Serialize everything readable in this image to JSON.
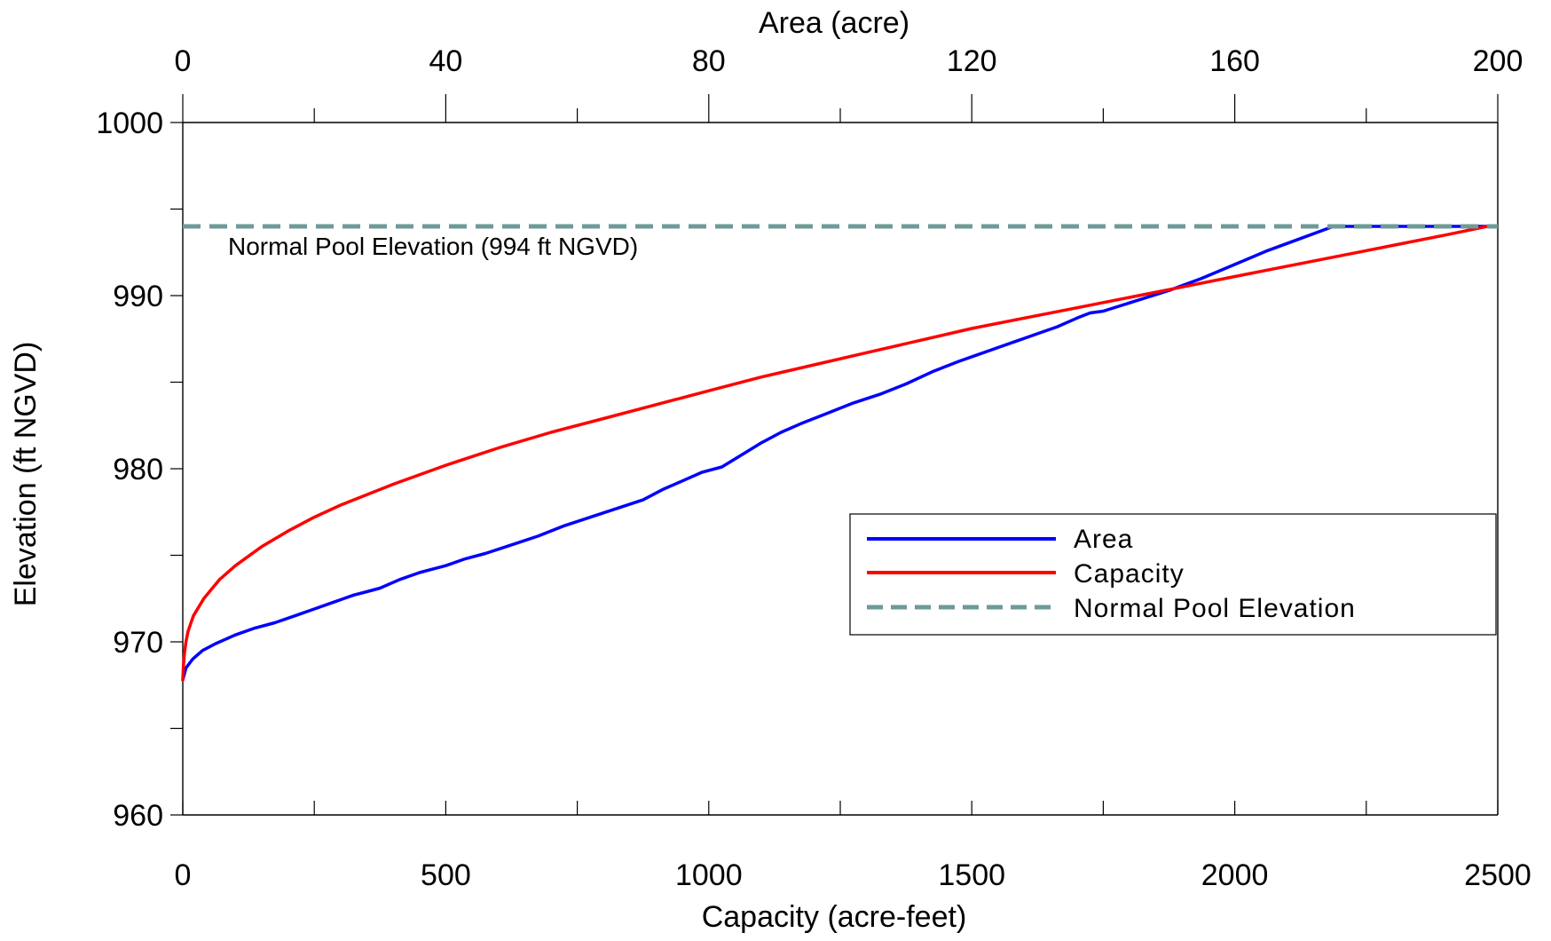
{
  "chart_data": {
    "type": "line",
    "title": "",
    "xlabel": "Capacity (acre-feet)",
    "x2label": "Area (acre)",
    "ylabel": "Elevation (ft NGVD)",
    "xlim": [
      0,
      2500
    ],
    "x2lim": [
      0,
      200
    ],
    "ylim": [
      960,
      1000
    ],
    "x_ticks": [
      "0",
      "500",
      "1000",
      "1500",
      "2000",
      "2500"
    ],
    "x2_ticks": [
      "0",
      "40",
      "80",
      "120",
      "160",
      "200"
    ],
    "y_ticks": [
      "960",
      "970",
      "980",
      "990",
      "1000"
    ],
    "grid": false,
    "legend_position": "right-middle",
    "legend": [
      "Area",
      "Capacity",
      "Normal Pool Elevation"
    ],
    "annotation": "Normal Pool Elevation (994 ft NGVD)",
    "normal_pool_elevation": 994,
    "series": [
      {
        "name": "Area",
        "axis": "top",
        "color": "#0000ff",
        "style": "solid",
        "x": [
          0,
          0.5,
          1.5,
          3,
          5,
          8,
          11,
          14,
          17,
          20,
          23,
          26,
          28,
          30,
          33,
          36,
          38,
          40,
          43,
          46,
          50,
          54,
          58,
          62,
          66,
          70,
          73,
          76,
          79,
          82,
          85,
          88,
          91,
          94,
          98,
          102,
          106,
          110,
          114,
          118,
          121,
          124,
          127,
          130,
          133,
          136,
          138,
          140,
          145,
          150,
          155,
          160,
          165,
          170,
          175,
          180,
          185,
          190,
          195,
          199
        ],
        "y": [
          967.8,
          968.5,
          969.0,
          969.5,
          969.9,
          970.4,
          970.8,
          971.1,
          971.5,
          971.9,
          972.3,
          972.7,
          972.9,
          973.1,
          973.6,
          974.0,
          974.2,
          974.4,
          974.8,
          975.1,
          975.6,
          976.1,
          976.7,
          977.2,
          977.7,
          978.2,
          978.8,
          979.3,
          979.8,
          980.1,
          980.8,
          981.5,
          982.1,
          982.6,
          983.2,
          983.8,
          984.3,
          984.9,
          985.6,
          986.2,
          986.6,
          987.0,
          987.4,
          987.8,
          988.2,
          988.7,
          989.0,
          989.1,
          989.7,
          990.3,
          991.0,
          991.8,
          992.6,
          993.3,
          994.0,
          994.0,
          994.0,
          994.0,
          994.0,
          994.0
        ]
      },
      {
        "name": "Capacity",
        "axis": "bottom",
        "color": "#ff0000",
        "style": "solid",
        "x": [
          0,
          1,
          3,
          6,
          10,
          20,
          40,
          70,
          100,
          150,
          200,
          250,
          300,
          400,
          500,
          600,
          700,
          800,
          900,
          1000,
          1100,
          1200,
          1300,
          1400,
          1500,
          1600,
          1700,
          1800,
          1900,
          2000,
          2100,
          2200,
          2300,
          2400,
          2480
        ],
        "y": [
          967.8,
          968.5,
          969.3,
          970.0,
          970.6,
          971.5,
          972.5,
          973.6,
          974.4,
          975.5,
          976.4,
          977.2,
          977.9,
          979.1,
          980.2,
          981.2,
          982.1,
          982.9,
          983.7,
          984.5,
          985.3,
          986.0,
          986.7,
          987.4,
          988.1,
          988.7,
          989.3,
          989.9,
          990.5,
          991.1,
          991.7,
          992.3,
          992.9,
          993.5,
          994.0
        ]
      },
      {
        "name": "Normal Pool Elevation",
        "axis": "bottom",
        "color": "#6e9a98",
        "style": "dashed",
        "x": [
          0,
          2500
        ],
        "y": [
          994,
          994
        ]
      }
    ]
  }
}
